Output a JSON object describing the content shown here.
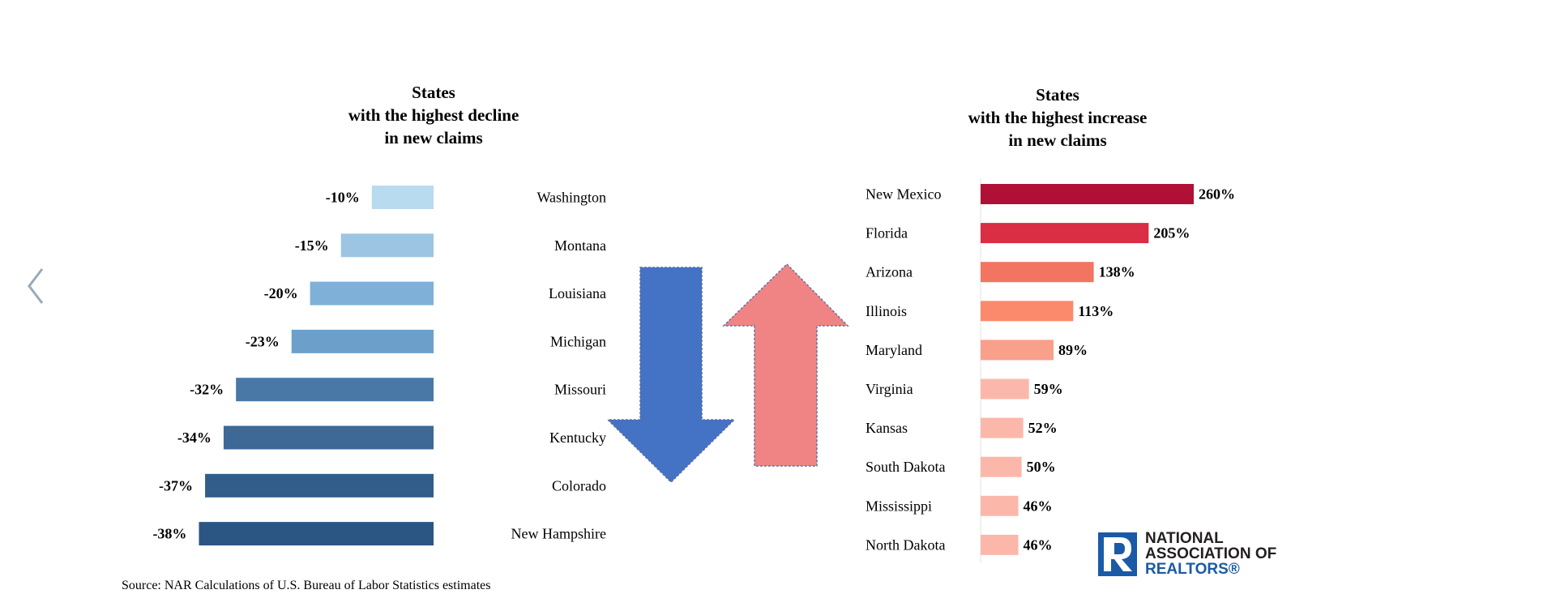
{
  "colors": {
    "decline_bars": [
      "#b8dbf0",
      "#9cc5e3",
      "#7fb0d8",
      "#6c9fca",
      "#4a78a6",
      "#3e6896",
      "#325d8b",
      "#2b5683"
    ],
    "increase_bars": [
      "#b01036",
      "#d92e44",
      "#f27562",
      "#fb8a6d",
      "#f8a08a",
      "#fbb8aa",
      "#fbb8aa",
      "#fbb8aa",
      "#fbb8aa",
      "#fbb8aa"
    ],
    "down_arrow": "#4472c4",
    "up_arrow": "#f08484",
    "logo_blue": "#1a5aa6"
  },
  "nav": {
    "prev_icon": "chevron-left-icon"
  },
  "chart_data": [
    {
      "type": "bar",
      "orientation": "horizontal",
      "title": "States\nwith the highest decline\nin new claims",
      "categories": [
        "Washington",
        "Montana",
        "Louisiana",
        "Michigan",
        "Missouri",
        "Kentucky",
        "Colorado",
        "New Hampshire"
      ],
      "values": [
        -10,
        -15,
        -20,
        -23,
        -32,
        -34,
        -37,
        -38
      ],
      "labels": [
        "-10%",
        "-15%",
        "-20%",
        "-23%",
        "-32%",
        "-34%",
        "-37%",
        "-38%"
      ]
    },
    {
      "type": "bar",
      "orientation": "horizontal",
      "title": "States\nwith the highest increase\nin new claims",
      "categories": [
        "New Mexico",
        "Florida",
        "Arizona",
        "Illinois",
        "Maryland",
        "Virginia",
        "Kansas",
        "South Dakota",
        "Mississippi",
        "North Dakota"
      ],
      "values": [
        260,
        205,
        138,
        113,
        89,
        59,
        52,
        50,
        46,
        46
      ],
      "labels": [
        "260%",
        "205%",
        "138%",
        "113%",
        "89%",
        "59%",
        "52%",
        "50%",
        "46%",
        "46%"
      ]
    }
  ],
  "source": "Source: NAR Calculations of U.S. Bureau of Labor Statistics estimates",
  "logo": {
    "line1": "NATIONAL",
    "line2": "ASSOCIATION OF",
    "line3": "REALTORS®"
  }
}
